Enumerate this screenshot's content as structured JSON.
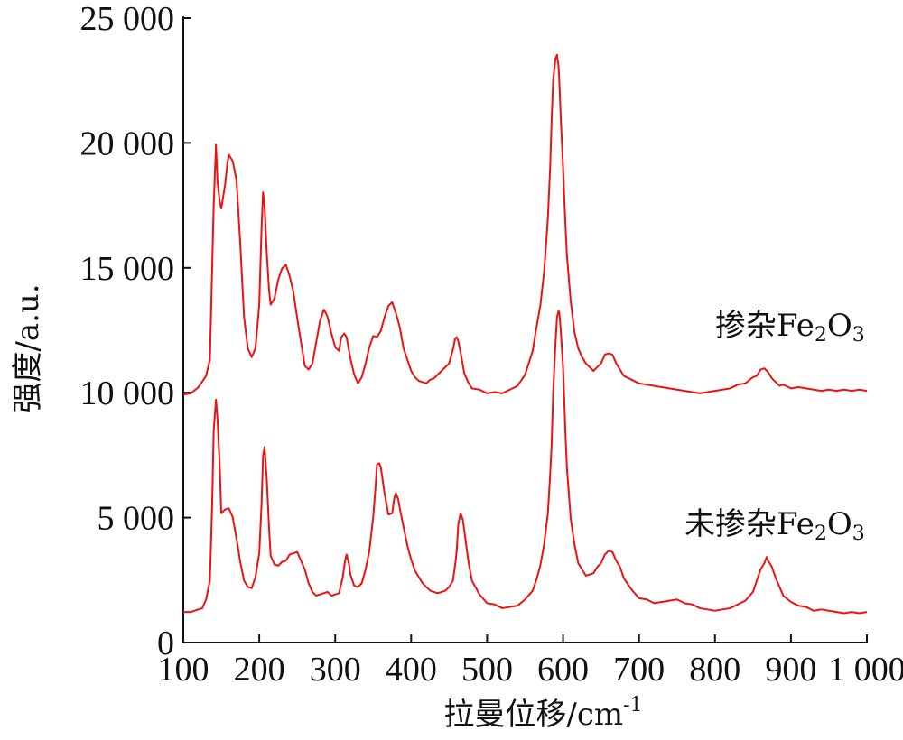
{
  "chart_data": {
    "type": "line",
    "title": "",
    "xlabel": "拉曼位移/cm",
    "xlabel_sup": "-1",
    "ylabel": "强度/a.u.",
    "xlim": [
      100,
      1000
    ],
    "ylim": [
      0,
      25000
    ],
    "xticks": [
      100,
      200,
      300,
      400,
      500,
      600,
      700,
      800,
      900,
      1000
    ],
    "xtick_labels": [
      "100",
      "200",
      "300",
      "400",
      "500",
      "600",
      "700",
      "800",
      "900",
      "1 000"
    ],
    "yticks": [
      0,
      5000,
      10000,
      15000,
      20000,
      25000
    ],
    "ytick_labels": [
      "0",
      "5 000",
      "10 000",
      "15 000",
      "20 000",
      "25 000"
    ],
    "grid": false,
    "legend": "none",
    "line_color": "#ee1111",
    "series": [
      {
        "name": "掺杂Fe2O3",
        "label_parts": [
          "掺杂Fe",
          "2",
          "O",
          "3"
        ],
        "x": [
          100,
          110,
          120,
          130,
          135,
          140,
          143,
          145,
          148,
          150,
          155,
          158,
          160,
          165,
          170,
          175,
          180,
          185,
          190,
          195,
          200,
          203,
          205,
          207,
          210,
          213,
          215,
          220,
          225,
          230,
          235,
          240,
          245,
          250,
          255,
          260,
          265,
          270,
          275,
          280,
          285,
          288,
          290,
          295,
          300,
          305,
          308,
          312,
          315,
          320,
          325,
          330,
          335,
          340,
          345,
          350,
          355,
          360,
          365,
          370,
          375,
          380,
          385,
          390,
          395,
          400,
          405,
          410,
          415,
          420,
          425,
          430,
          435,
          440,
          445,
          450,
          455,
          458,
          460,
          462,
          465,
          470,
          475,
          480,
          490,
          500,
          510,
          520,
          530,
          540,
          550,
          560,
          565,
          570,
          575,
          580,
          583,
          585,
          587,
          590,
          592,
          594,
          595,
          597,
          600,
          602,
          605,
          610,
          615,
          620,
          625,
          630,
          635,
          640,
          645,
          650,
          655,
          660,
          665,
          670,
          675,
          680,
          690,
          700,
          710,
          720,
          730,
          740,
          750,
          760,
          770,
          780,
          790,
          800,
          810,
          820,
          830,
          840,
          850,
          855,
          860,
          865,
          870,
          875,
          880,
          885,
          890,
          900,
          910,
          920,
          930,
          940,
          950,
          960,
          970,
          980,
          990,
          1000
        ],
        "y": [
          9900,
          10000,
          10200,
          10700,
          11300,
          17500,
          19900,
          18500,
          17600,
          17400,
          18300,
          19200,
          19500,
          19300,
          18500,
          16000,
          13000,
          11800,
          11400,
          11800,
          13500,
          16600,
          18000,
          17500,
          15500,
          14100,
          13500,
          13800,
          14500,
          15000,
          15100,
          14700,
          14000,
          13000,
          12000,
          11100,
          10900,
          11200,
          12000,
          12900,
          13300,
          13200,
          13000,
          12400,
          11800,
          11700,
          12200,
          12400,
          12200,
          11400,
          10700,
          10400,
          10600,
          11200,
          11800,
          12300,
          12200,
          12500,
          13000,
          13500,
          13600,
          13200,
          12600,
          11800,
          11300,
          10900,
          10600,
          10500,
          10400,
          10400,
          10500,
          10600,
          10700,
          10900,
          11000,
          11200,
          11700,
          12200,
          12200,
          12100,
          11600,
          10800,
          10400,
          10200,
          10100,
          10000,
          10000,
          10000,
          10100,
          10300,
          10700,
          11700,
          12600,
          13500,
          14800,
          17000,
          19000,
          21000,
          22500,
          23400,
          23500,
          23100,
          22500,
          21000,
          19000,
          17500,
          15500,
          13700,
          12400,
          11800,
          11400,
          11200,
          11000,
          10900,
          11000,
          11200,
          11500,
          11600,
          11500,
          11200,
          10900,
          10700,
          10500,
          10400,
          10300,
          10300,
          10200,
          10200,
          10100,
          10100,
          10000,
          10000,
          10000,
          10100,
          10100,
          10200,
          10300,
          10400,
          10600,
          10700,
          10900,
          11000,
          10800,
          10600,
          10400,
          10300,
          10300,
          10200,
          10200,
          10200,
          10100,
          10100,
          10100,
          10100,
          10100,
          10100,
          10100,
          10100
        ]
      },
      {
        "name": "未掺杂Fe2O3",
        "label_parts": [
          "未掺杂Fe",
          "2",
          "O",
          "3"
        ],
        "x": [
          100,
          110,
          120,
          125,
          130,
          135,
          138,
          140,
          143,
          145,
          148,
          150,
          155,
          160,
          165,
          170,
          175,
          180,
          185,
          190,
          195,
          200,
          203,
          205,
          207,
          210,
          213,
          215,
          220,
          225,
          230,
          235,
          240,
          245,
          250,
          255,
          260,
          265,
          270,
          275,
          280,
          285,
          290,
          295,
          300,
          305,
          310,
          313,
          315,
          318,
          320,
          325,
          330,
          335,
          340,
          345,
          350,
          353,
          355,
          358,
          360,
          365,
          370,
          375,
          378,
          380,
          383,
          385,
          390,
          395,
          400,
          405,
          410,
          415,
          420,
          425,
          430,
          435,
          440,
          445,
          450,
          455,
          458,
          460,
          462,
          465,
          468,
          470,
          475,
          480,
          490,
          500,
          510,
          520,
          530,
          540,
          550,
          560,
          565,
          570,
          575,
          580,
          583,
          585,
          587,
          590,
          592,
          594,
          595,
          597,
          600,
          603,
          605,
          610,
          615,
          620,
          625,
          630,
          635,
          640,
          645,
          650,
          655,
          660,
          665,
          670,
          675,
          680,
          690,
          700,
          710,
          720,
          730,
          740,
          750,
          760,
          770,
          780,
          790,
          800,
          810,
          820,
          830,
          840,
          850,
          855,
          860,
          865,
          868,
          870,
          875,
          880,
          885,
          890,
          900,
          910,
          920,
          930,
          940,
          950,
          960,
          970,
          980,
          990,
          1000
        ],
        "y": [
          1200,
          1250,
          1300,
          1400,
          1700,
          2500,
          5500,
          8500,
          9700,
          9000,
          7000,
          5200,
          5300,
          5400,
          5000,
          4200,
          3200,
          2500,
          2200,
          2200,
          2600,
          3600,
          5500,
          7500,
          7800,
          6500,
          4500,
          3500,
          3100,
          3100,
          3200,
          3300,
          3500,
          3600,
          3600,
          3300,
          2900,
          2400,
          2000,
          1900,
          1900,
          2000,
          2000,
          1900,
          1900,
          2000,
          2600,
          3300,
          3500,
          3200,
          2700,
          2300,
          2200,
          2400,
          2900,
          3700,
          5000,
          6200,
          7100,
          7200,
          7000,
          6000,
          5100,
          5200,
          5800,
          6000,
          5700,
          5400,
          4600,
          3900,
          3300,
          2900,
          2600,
          2400,
          2200,
          2100,
          2000,
          2000,
          2000,
          2100,
          2200,
          2500,
          3100,
          3700,
          4700,
          5200,
          4900,
          4500,
          3300,
          2500,
          1900,
          1600,
          1500,
          1400,
          1400,
          1500,
          1700,
          2100,
          2500,
          3100,
          3900,
          5200,
          6700,
          8000,
          10000,
          12000,
          13000,
          13300,
          13200,
          12500,
          11000,
          8500,
          7000,
          5000,
          3900,
          3200,
          2900,
          2700,
          2700,
          2800,
          3000,
          3200,
          3500,
          3700,
          3600,
          3300,
          3000,
          2600,
          2100,
          1800,
          1700,
          1600,
          1600,
          1700,
          1700,
          1600,
          1500,
          1400,
          1300,
          1300,
          1300,
          1400,
          1500,
          1700,
          2000,
          2500,
          2900,
          3200,
          3400,
          3300,
          3000,
          2600,
          2200,
          1900,
          1600,
          1500,
          1400,
          1300,
          1300,
          1300,
          1200,
          1200,
          1200,
          1200,
          1200
        ]
      }
    ]
  }
}
